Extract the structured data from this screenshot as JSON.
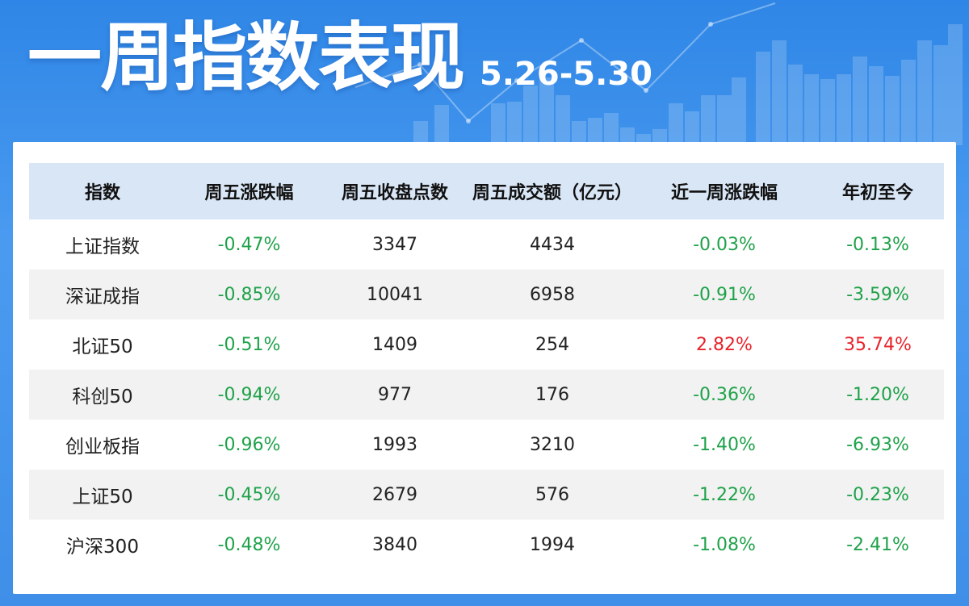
{
  "header": {
    "title": "一周指数表现",
    "date_range": "5.26-5.30"
  },
  "colors": {
    "background": "#3f8fe8",
    "header_row": "#d9e6f5",
    "down": "#1fa24a",
    "up": "#e8232b"
  },
  "table": {
    "columns": [
      "指数",
      "周五涨跌幅",
      "周五收盘点数",
      "周五成交额（亿元）",
      "近一周涨跌幅",
      "年初至今"
    ],
    "rows": [
      {
        "name": "上证指数",
        "fri_change": "-0.47%",
        "fri_close": "3347",
        "fri_turnover": "4434",
        "week_change": "-0.03%",
        "ytd": "-0.13%",
        "fri_change_dir": "neg",
        "week_change_dir": "neg",
        "ytd_dir": "neg"
      },
      {
        "name": "深证成指",
        "fri_change": "-0.85%",
        "fri_close": "10041",
        "fri_turnover": "6958",
        "week_change": "-0.91%",
        "ytd": "-3.59%",
        "fri_change_dir": "neg",
        "week_change_dir": "neg",
        "ytd_dir": "neg"
      },
      {
        "name": "北证50",
        "fri_change": "-0.51%",
        "fri_close": "1409",
        "fri_turnover": "254",
        "week_change": "2.82%",
        "ytd": "35.74%",
        "fri_change_dir": "neg",
        "week_change_dir": "pos",
        "ytd_dir": "pos"
      },
      {
        "name": "科创50",
        "fri_change": "-0.94%",
        "fri_close": "977",
        "fri_turnover": "176",
        "week_change": "-0.36%",
        "ytd": "-1.20%",
        "fri_change_dir": "neg",
        "week_change_dir": "neg",
        "ytd_dir": "neg"
      },
      {
        "name": "创业板指",
        "fri_change": "-0.96%",
        "fri_close": "1993",
        "fri_turnover": "3210",
        "week_change": "-1.40%",
        "ytd": "-6.93%",
        "fri_change_dir": "neg",
        "week_change_dir": "neg",
        "ytd_dir": "neg"
      },
      {
        "name": "上证50",
        "fri_change": "-0.45%",
        "fri_close": "2679",
        "fri_turnover": "576",
        "week_change": "-1.22%",
        "ytd": "-0.23%",
        "fri_change_dir": "neg",
        "week_change_dir": "neg",
        "ytd_dir": "neg"
      },
      {
        "name": "沪深300",
        "fri_change": "-0.48%",
        "fri_close": "3840",
        "fri_turnover": "1994",
        "week_change": "-1.08%",
        "ytd": "-2.41%",
        "fri_change_dir": "neg",
        "week_change_dir": "neg",
        "ytd_dir": "neg"
      }
    ]
  }
}
